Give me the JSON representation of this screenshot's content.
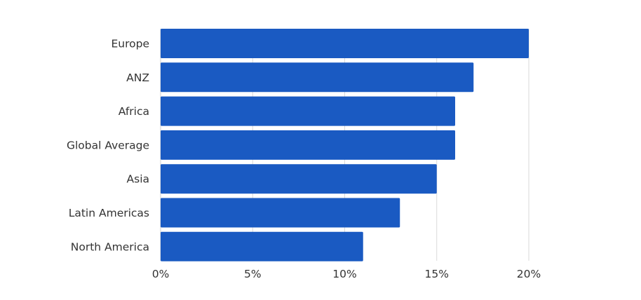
{
  "chart_data": {
    "type": "bar",
    "orientation": "horizontal",
    "categories": [
      "Europe",
      "ANZ",
      "Africa",
      "Global Average",
      "Asia",
      "Latin Americas",
      "North America"
    ],
    "values": [
      20,
      17,
      16,
      16,
      15,
      13,
      11
    ],
    "unit": "%",
    "xlim": [
      0,
      20
    ],
    "xticks": [
      0,
      5,
      10,
      15,
      20
    ],
    "xtick_labels": [
      "0%",
      "5%",
      "10%",
      "15%",
      "20%"
    ],
    "grid": true,
    "bar_color": "#1a5ac2"
  }
}
